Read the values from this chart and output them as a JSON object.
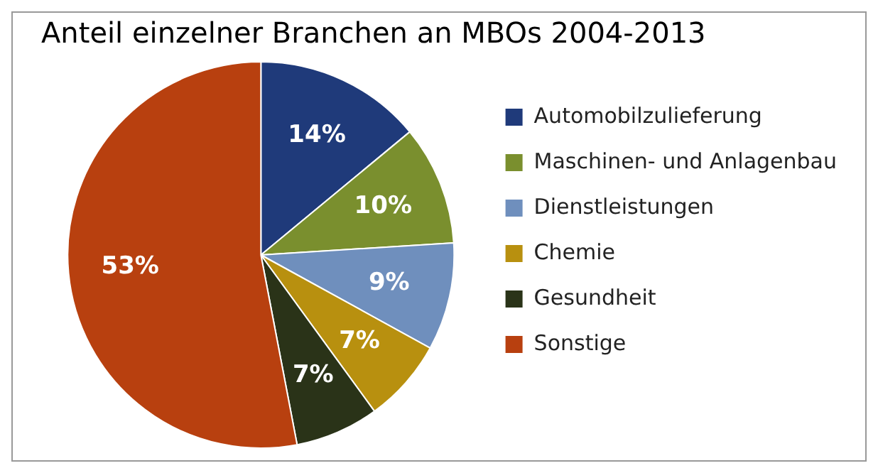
{
  "chart_data": {
    "type": "pie",
    "title": "Anteil einzelner Branchen an MBOs 2004-2013",
    "categories": [
      "Automobilzulieferung",
      "Maschinen- und Anlagenbau",
      "Dienstleistungen",
      "Chemie",
      "Gesundheit",
      "Sonstige"
    ],
    "values": [
      14,
      10,
      9,
      7,
      7,
      53
    ],
    "value_labels": [
      "14%",
      "10%",
      "9%",
      "7%",
      "7%",
      "53%"
    ],
    "colors": [
      "#1f3a7a",
      "#7a8f2e",
      "#6f8fbd",
      "#b8900f",
      "#2a3318",
      "#b8400f"
    ],
    "legend": "right"
  }
}
